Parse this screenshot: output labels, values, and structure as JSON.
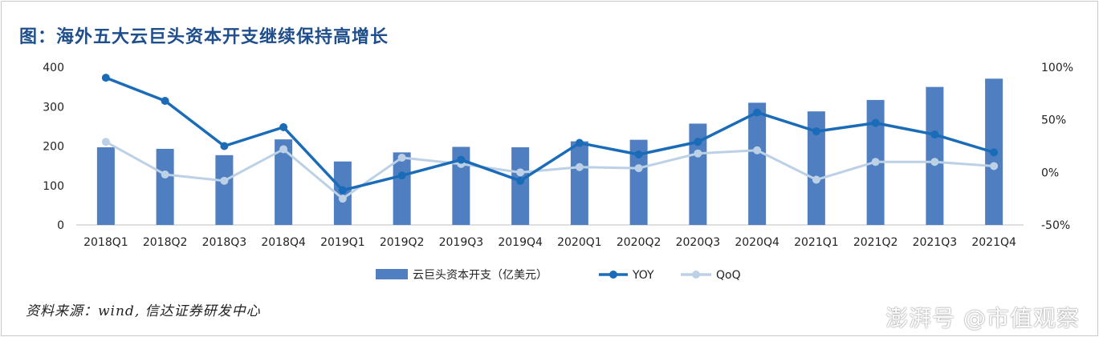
{
  "title": "图：海外五大云巨头资本开支继续保持高增长",
  "source": "资料来源：wind, 信达证券研发中心",
  "watermark": "澎湃号 @市值观察",
  "colors": {
    "bar": "#4f7fc1",
    "yoy": "#1a6bb8",
    "qoq": "#bcd0e6"
  },
  "chart_data": {
    "type": "bar",
    "categories": [
      "2018Q1",
      "2018Q2",
      "2018Q3",
      "2018Q4",
      "2019Q1",
      "2019Q2",
      "2019Q3",
      "2019Q4",
      "2020Q1",
      "2020Q2",
      "2020Q3",
      "2020Q4",
      "2021Q1",
      "2021Q2",
      "2021Q3",
      "2021Q4"
    ],
    "series": [
      {
        "name": "云巨头资本开支（亿美元）",
        "type": "bar",
        "axis": "left",
        "values": [
          197,
          193,
          177,
          217,
          161,
          184,
          198,
          197,
          212,
          216,
          257,
          310,
          288,
          317,
          350,
          371
        ]
      },
      {
        "name": "YOY",
        "type": "line",
        "axis": "right",
        "values": [
          90,
          68,
          25,
          43,
          -17,
          -3,
          12,
          -8,
          28,
          17,
          29,
          57,
          39,
          47,
          36,
          19
        ]
      },
      {
        "name": "QoQ",
        "type": "line",
        "axis": "right",
        "values": [
          29,
          -2,
          -8,
          22,
          -25,
          14,
          8,
          0,
          5,
          4,
          18,
          21,
          -7,
          10,
          10,
          6
        ]
      }
    ],
    "y_left": {
      "range": [
        0,
        400
      ],
      "ticks": [
        "0",
        "100",
        "200",
        "300",
        "400"
      ]
    },
    "y_right": {
      "range": [
        -50,
        100
      ],
      "ticks": [
        "-50%",
        "0%",
        "50%",
        "100%"
      ]
    },
    "grid": false,
    "legend_position": "bottom"
  }
}
